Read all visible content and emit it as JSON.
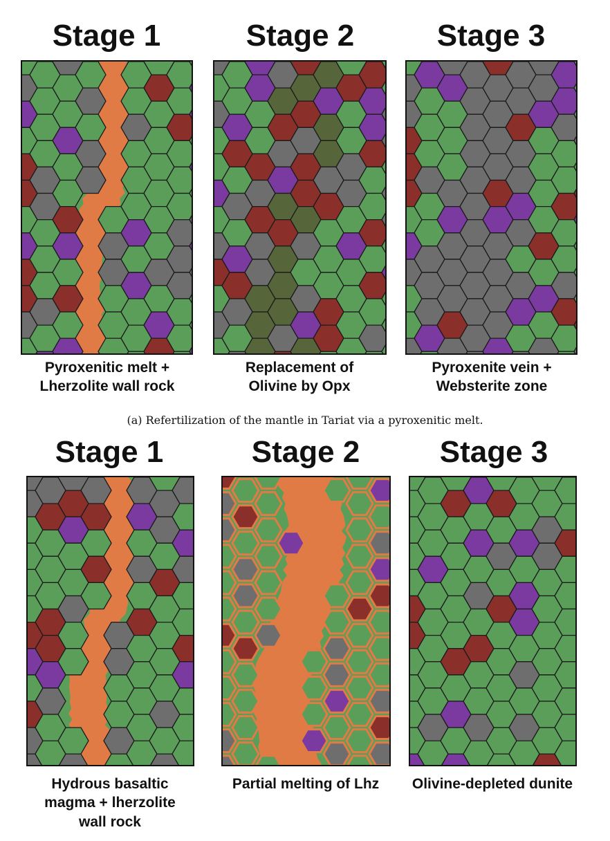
{
  "figure_a": {
    "panels": [
      {
        "title": "Stage 1",
        "caption": "Pyroxenitic melt +\nLherzolite wall rock",
        "variant": "a1"
      },
      {
        "title": "Stage 2",
        "caption": "Replacement of\nOlivine by Opx",
        "variant": "a2"
      },
      {
        "title": "Stage 3",
        "caption": "Pyroxenite vein +\nWebsterite zone",
        "variant": "a3"
      }
    ],
    "subcaption": "(a) Refertilization of the mantle in Tariat via a pyroxenitic melt."
  },
  "figure_b": {
    "panels": [
      {
        "title": "Stage 1",
        "caption": "Hydrous basaltic\nmagma + lherzolite\nwall rock",
        "variant": "b1"
      },
      {
        "title": "Stage 2",
        "caption": "Partial melting of Lhz",
        "variant": "b2"
      },
      {
        "title": "Stage 3",
        "caption": "Olivine-depleted dunite",
        "variant": "b3"
      }
    ]
  },
  "colors": {
    "olivine_green": "#5a9e5a",
    "pyroxene_gray": "#6e6e6e",
    "garnet_red": "#8b2f2a",
    "spinel_purple": "#7a3aa0",
    "melt_orange": "#e07b45",
    "opx_dark_green": "#56663a",
    "outline": "#1a1a1a"
  }
}
